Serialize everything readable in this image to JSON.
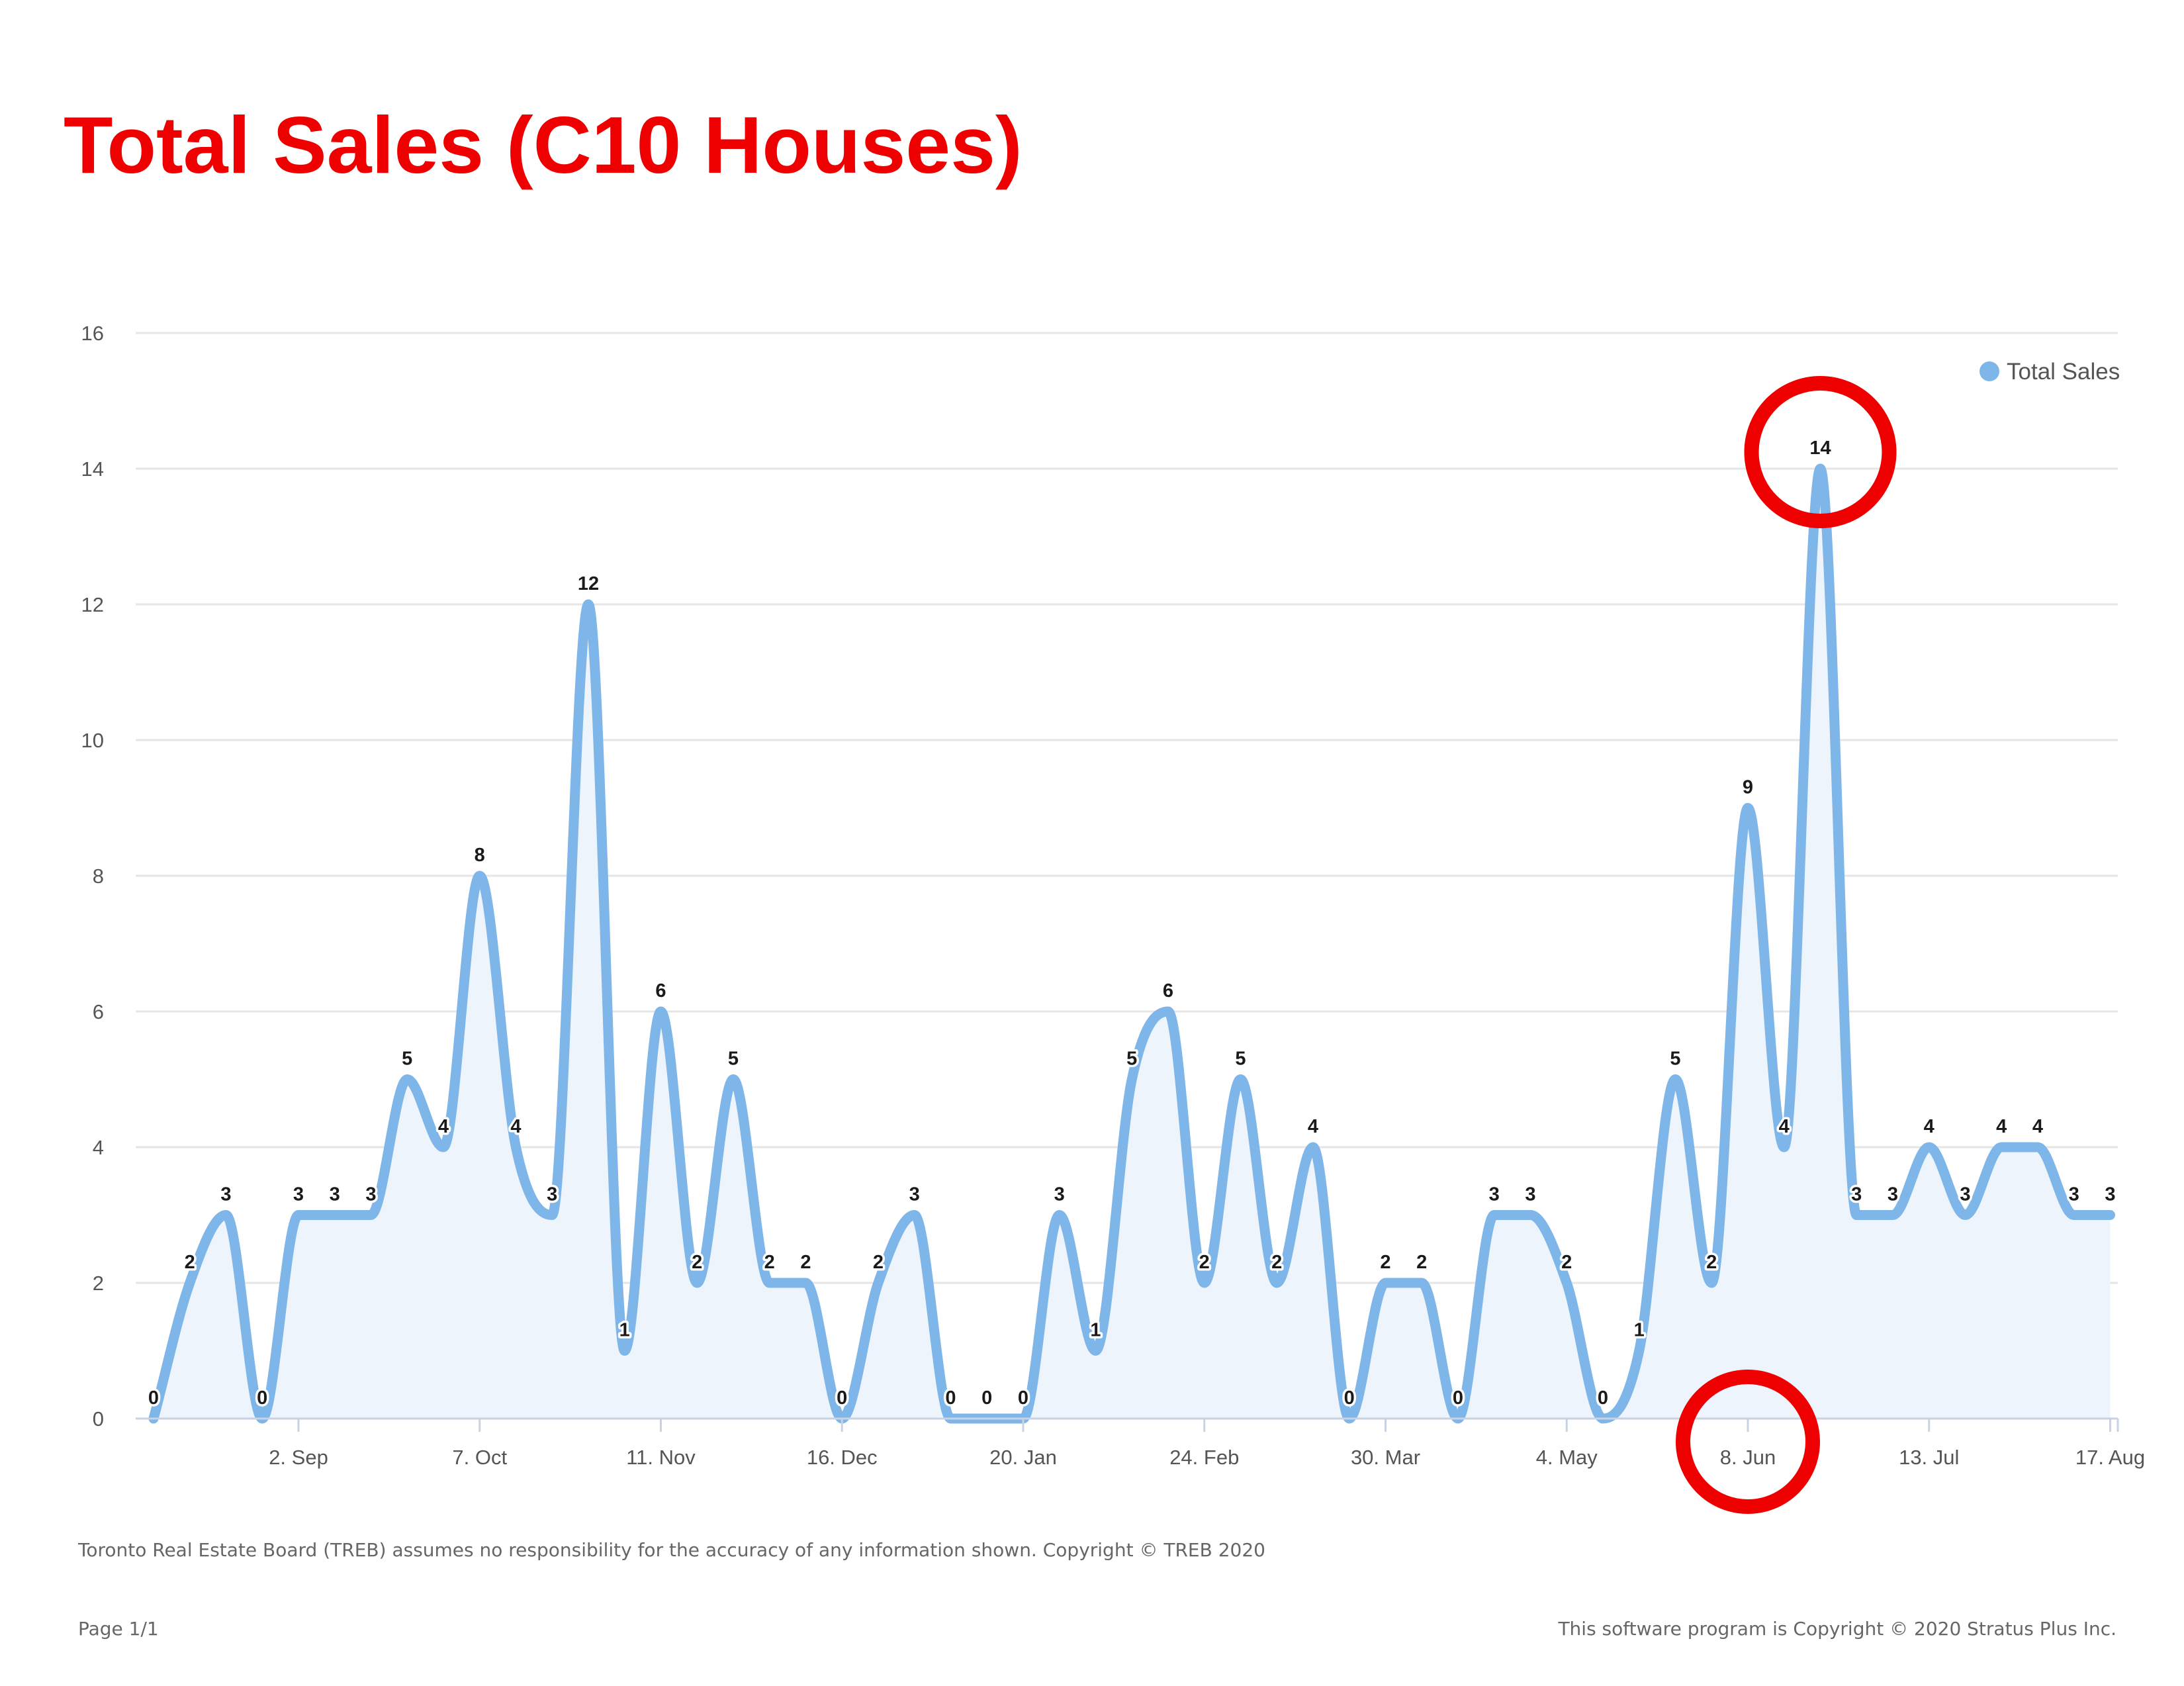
{
  "page": {
    "title": "Total Sales (C10 Houses)",
    "disclaimer": "Toronto Real Estate Board (TREB) assumes no responsibility for the accuracy of any information shown. Copyright © TREB 2020",
    "page_number": "Page 1/1",
    "software_copyright": "This software program is Copyright © 2020 Stratus Plus Inc."
  },
  "colors": {
    "title": "#ee0000",
    "series_line": "#7eb6e9",
    "series_fill": "#eef4fb",
    "gridline": "#e6e6e6",
    "axis_text": "#555555",
    "data_label": "#1a1a1a",
    "highlight_circle": "#ee0000",
    "footer_text": "#666666"
  },
  "chart_data": {
    "type": "area",
    "title": "Total Sales (C10 Houses)",
    "xlabel": "",
    "ylabel": "",
    "ylim": [
      0,
      16
    ],
    "yticks": [
      0,
      2,
      4,
      6,
      8,
      10,
      12,
      14,
      16
    ],
    "xtick_labels": [
      "2. Sep",
      "7. Oct",
      "11. Nov",
      "16. Dec",
      "20. Jan",
      "24. Feb",
      "30. Mar",
      "4. May",
      "8. Jun",
      "13. Jul",
      "17. Aug"
    ],
    "xtick_week_index": [
      4,
      9,
      14,
      19,
      24,
      29,
      34,
      39,
      44,
      49,
      54
    ],
    "grid": true,
    "legend": {
      "position": "top-right",
      "entries": [
        "Total Sales"
      ]
    },
    "series": [
      {
        "name": "Total Sales",
        "values": [
          0,
          2,
          3,
          0,
          3,
          3,
          3,
          5,
          4,
          8,
          4,
          3,
          12,
          1,
          6,
          2,
          5,
          2,
          2,
          0,
          2,
          3,
          0,
          0,
          0,
          3,
          1,
          5,
          6,
          2,
          5,
          2,
          4,
          0,
          2,
          2,
          0,
          3,
          3,
          2,
          0,
          1,
          5,
          2,
          9,
          4,
          14,
          3,
          3,
          4,
          3,
          4,
          4,
          3,
          3
        ]
      }
    ],
    "data_labels": true,
    "annotations": [
      {
        "type": "circle",
        "target": "peak value 14"
      },
      {
        "type": "circle",
        "target": "x-axis label 8. Jun"
      }
    ]
  }
}
